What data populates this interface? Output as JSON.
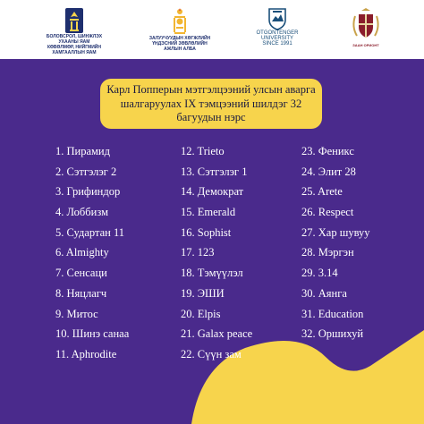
{
  "logos": [
    {
      "name": "ministry",
      "caption": "БОЛОВСРОЛ, ШИНЖЛЭХ УХААНЫ ЯАМ\nКӨВӨЛМӨР, НИЙГМИЙН\nХАМГААЛЛЫН ЯАМ"
    },
    {
      "name": "agency",
      "caption": "ЗАЛУУЧУУДЫН ХӨГЖЛИЙН\nҮНДЭСНИЙ ЗӨВЛӨЛИЙН\nАЖЛЫН АЛБА"
    },
    {
      "name": "otgontenger",
      "caption": "OTGONTENGER\nUNIVERSITY\nSINCE 1991"
    },
    {
      "name": "school",
      "caption": "ЗААН ОРИОНТ"
    }
  ],
  "title": "Карл Попперын мэтгэлцээний  улсын аварга шалгаруулах IX тэмцээний шилдэг 32 багуудын нэрс",
  "teams": [
    [
      "1. Пирамид",
      "2. Сэтгэлэг 2",
      "3. Грифиндор",
      "4. Лоббизм",
      "5. Судартан 11",
      "6. Almighty",
      "7. Сенсаци",
      "8. Няцлагч",
      "9. Митос",
      "10. Шинэ санаа",
      "11. Aphrodite"
    ],
    [
      "12. Trieto",
      "13. Сэтгэлэг 1",
      "14. Демократ",
      "15. Emerald",
      "16. Sophist",
      "17. 123",
      "18. Тэмүүлэл",
      "19. ЭШИ",
      "20. Elpis",
      "21. Galax peace",
      "22. Сүүн зам"
    ],
    [
      "23. Феникс",
      "24. Элит 28",
      "25. Arete",
      "26. Respect",
      "27. Хар шувуу",
      "28. Мэргэн",
      "29. 3.14",
      "30. Аянга",
      "31. Education",
      "32. Оршихуй"
    ]
  ],
  "colors": {
    "background": "#4a2a8c",
    "highlight": "#f7d44c",
    "blob": "#f7d44c"
  }
}
